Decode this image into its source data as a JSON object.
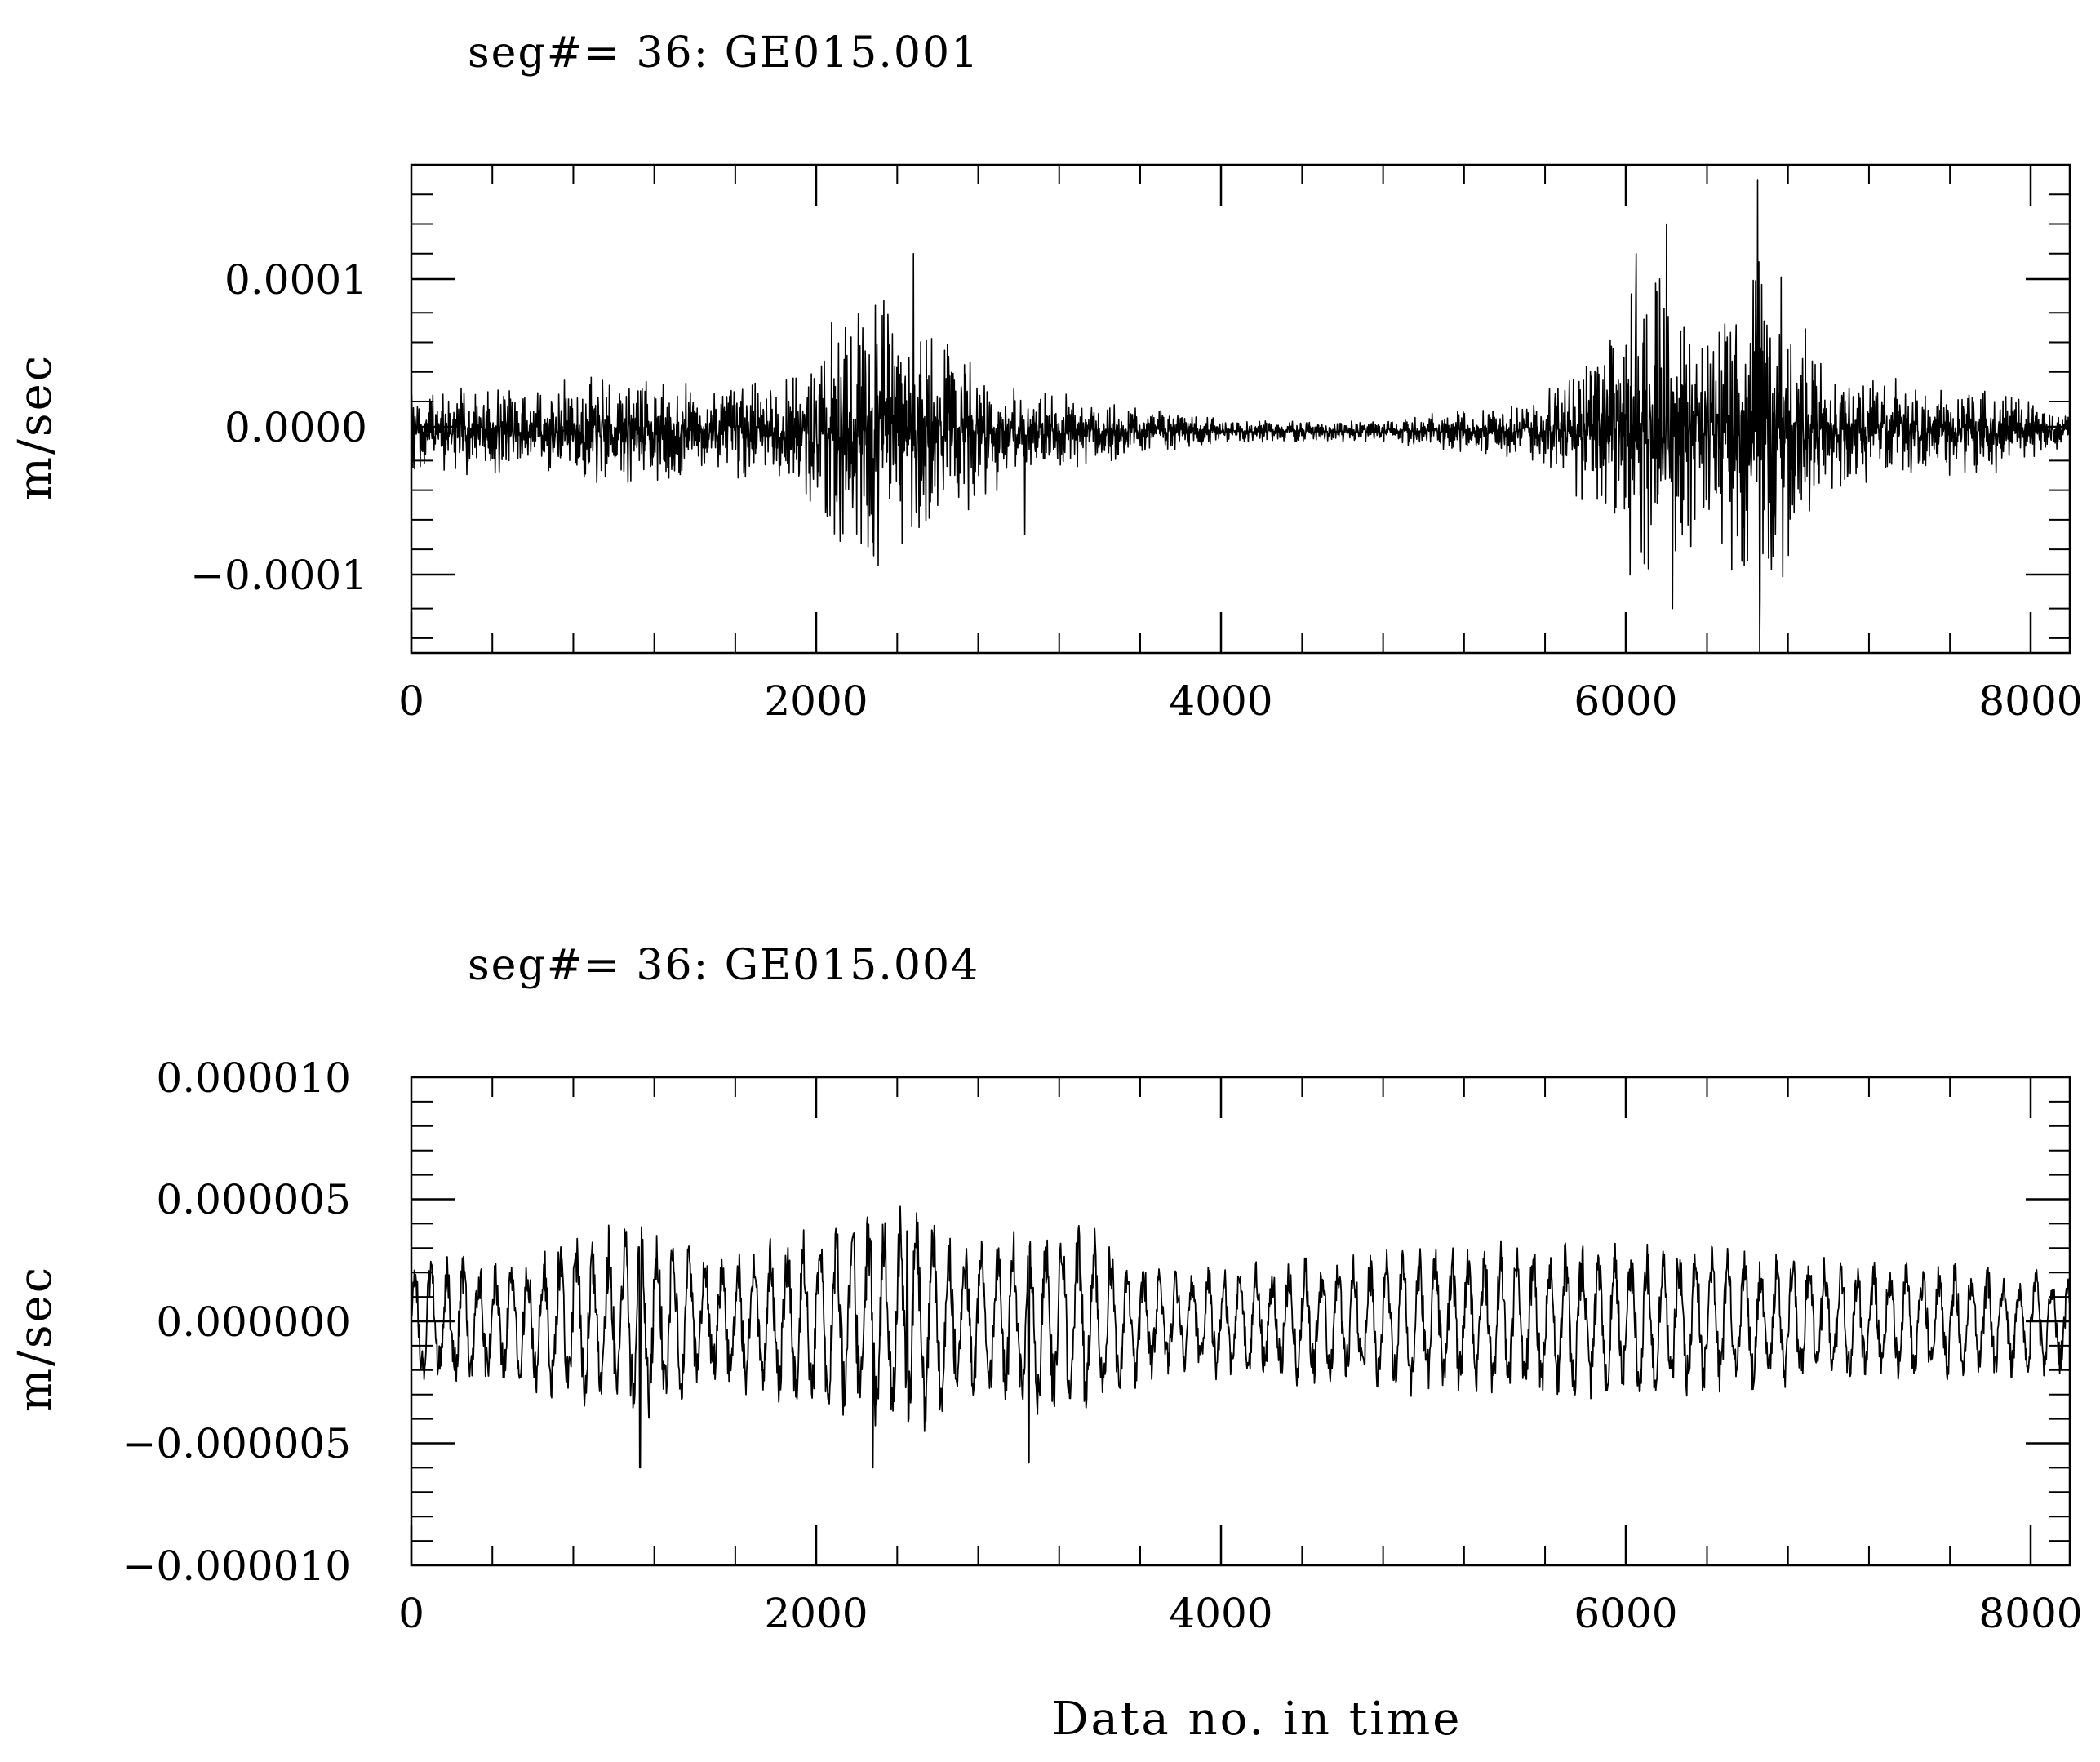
{
  "chart_data": [
    {
      "type": "line",
      "title": "seg#= 36: GE015.001",
      "xlabel": "",
      "ylabel": "m/sec",
      "xlim": [
        0,
        8192
      ],
      "ylim": [
        -0.00015,
        0.00018
      ],
      "xticks": [
        0,
        2000,
        4000,
        6000,
        8000
      ],
      "xtick_labels": [
        "0",
        "2000",
        "4000",
        "6000",
        "8000"
      ],
      "yticks": [
        0.0001,
        0.0,
        -0.0001
      ],
      "ytick_labels": [
        "0.0001",
        "0.0000",
        "−0.0001"
      ],
      "grid": false,
      "line_color": "#000000",
      "envelope": [
        {
          "x": 0,
          "amp": 3e-05
        },
        {
          "x": 500,
          "amp": 3e-05
        },
        {
          "x": 1000,
          "amp": 4e-05
        },
        {
          "x": 1500,
          "amp": 3e-05
        },
        {
          "x": 1900,
          "amp": 4e-05
        },
        {
          "x": 2100,
          "amp": 9e-05
        },
        {
          "x": 2400,
          "amp": 0.0001
        },
        {
          "x": 2700,
          "amp": 6e-05
        },
        {
          "x": 3000,
          "amp": 3e-05
        },
        {
          "x": 3500,
          "amp": 2e-05
        },
        {
          "x": 4000,
          "amp": 8e-06
        },
        {
          "x": 4800,
          "amp": 8e-06
        },
        {
          "x": 5500,
          "amp": 2e-05
        },
        {
          "x": 5800,
          "amp": 5e-05
        },
        {
          "x": 6100,
          "amp": 0.00012
        },
        {
          "x": 6400,
          "amp": 7e-05
        },
        {
          "x": 6650,
          "amp": 0.00015
        },
        {
          "x": 7000,
          "amp": 4e-05
        },
        {
          "x": 7800,
          "amp": 3e-05
        },
        {
          "x": 8192,
          "amp": 1e-05
        }
      ],
      "spikes": [
        {
          "x": 2480,
          "y": 0.00012
        },
        {
          "x": 3030,
          "y": -7e-05
        },
        {
          "x": 6050,
          "y": 0.00012
        },
        {
          "x": 6200,
          "y": 0.00014
        },
        {
          "x": 6230,
          "y": -0.00012
        },
        {
          "x": 6650,
          "y": 0.00017
        },
        {
          "x": 6660,
          "y": -0.00015
        }
      ]
    },
    {
      "type": "line",
      "title": "seg#= 36: GE015.004",
      "xlabel": "Data no. in time",
      "ylabel": "m/sec",
      "xlim": [
        0,
        8192
      ],
      "ylim": [
        -1e-05,
        1e-05
      ],
      "xticks": [
        0,
        2000,
        4000,
        6000,
        8000
      ],
      "xtick_labels": [
        "0",
        "2000",
        "4000",
        "6000",
        "8000"
      ],
      "yticks": [
        1e-05,
        5e-06,
        0.0,
        -5e-06,
        -1e-05
      ],
      "ytick_labels": [
        "0.000010",
        "0.000005",
        "0.000000",
        "−0.000005",
        "−0.000010"
      ],
      "grid": false,
      "line_color": "#000000",
      "envelope": [
        {
          "x": 0,
          "amp": 2.5e-06
        },
        {
          "x": 500,
          "amp": 2.5e-06
        },
        {
          "x": 1100,
          "amp": 4e-06
        },
        {
          "x": 1500,
          "amp": 2.5e-06
        },
        {
          "x": 2200,
          "amp": 4e-06
        },
        {
          "x": 2450,
          "amp": 4.5e-06
        },
        {
          "x": 2800,
          "amp": 3e-06
        },
        {
          "x": 3300,
          "amp": 4e-06
        },
        {
          "x": 3700,
          "amp": 2e-06
        },
        {
          "x": 4500,
          "amp": 2.5e-06
        },
        {
          "x": 5200,
          "amp": 3e-06
        },
        {
          "x": 6100,
          "amp": 3e-06
        },
        {
          "x": 7000,
          "amp": 2.5e-06
        },
        {
          "x": 8192,
          "amp": 2e-06
        }
      ],
      "spikes": [
        {
          "x": 1130,
          "y": -6e-06
        },
        {
          "x": 2270,
          "y": 3.3e-06
        },
        {
          "x": 2450,
          "y": 3.7e-06
        },
        {
          "x": 2280,
          "y": -6e-06
        },
        {
          "x": 3050,
          "y": -5.8e-06
        }
      ]
    }
  ]
}
